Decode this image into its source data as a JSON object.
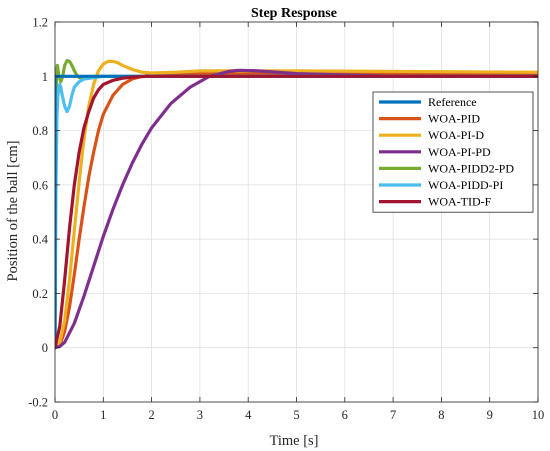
{
  "chart_data": {
    "type": "line",
    "title": "Step Response",
    "xlabel": "Time [s]",
    "ylabel": "Position of the ball [cm]",
    "xlim": [
      0,
      10
    ],
    "ylim": [
      -0.2,
      1.2
    ],
    "xticks": [
      0,
      1,
      2,
      3,
      4,
      5,
      6,
      7,
      8,
      9,
      10
    ],
    "yticks": [
      -0.2,
      0,
      0.2,
      0.4,
      0.6,
      0.8,
      1,
      1.2
    ],
    "xtick_labels": [
      "0",
      "1",
      "2",
      "3",
      "4",
      "5",
      "6",
      "7",
      "8",
      "9",
      "10"
    ],
    "ytick_labels": [
      "-0.2",
      "0",
      "0.2",
      "0.4",
      "0.6",
      "0.8",
      "1",
      "1.2"
    ],
    "grid": true,
    "legend_position": "top-right",
    "series": [
      {
        "name": "Reference",
        "color": "#0072BD",
        "x": [
          0,
          0.001,
          10
        ],
        "y": [
          0,
          1,
          1
        ]
      },
      {
        "name": "WOA-PID",
        "color": "#D95319",
        "x": [
          0,
          0.1,
          0.2,
          0.3,
          0.4,
          0.5,
          0.6,
          0.7,
          0.8,
          0.9,
          1.0,
          1.2,
          1.4,
          1.6,
          1.8,
          2.0,
          2.5,
          3.0,
          4.0,
          6.0,
          10.0
        ],
        "y": [
          0,
          0.01,
          0.06,
          0.15,
          0.27,
          0.4,
          0.52,
          0.63,
          0.72,
          0.8,
          0.86,
          0.93,
          0.97,
          0.99,
          1.0,
          1.005,
          1.01,
          1.012,
          1.012,
          1.01,
          1.01
        ]
      },
      {
        "name": "WOA-PI-D",
        "color": "#EDB120",
        "x": [
          0,
          0.1,
          0.2,
          0.3,
          0.4,
          0.5,
          0.6,
          0.7,
          0.8,
          0.9,
          1.0,
          1.1,
          1.2,
          1.3,
          1.4,
          1.6,
          1.8,
          2.0,
          2.5,
          3.0,
          5.0,
          10.0
        ],
        "y": [
          0,
          0.02,
          0.1,
          0.25,
          0.43,
          0.61,
          0.77,
          0.89,
          0.97,
          1.02,
          1.045,
          1.055,
          1.055,
          1.05,
          1.04,
          1.025,
          1.015,
          1.012,
          1.015,
          1.02,
          1.02,
          1.015
        ]
      },
      {
        "name": "WOA-PI-PD",
        "color": "#7E2F8E",
        "x": [
          0,
          0.1,
          0.2,
          0.4,
          0.6,
          0.8,
          1.0,
          1.2,
          1.4,
          1.6,
          1.8,
          2.0,
          2.4,
          2.8,
          3.2,
          3.6,
          3.8,
          4.2,
          4.6,
          5.0,
          6.0,
          7.0,
          8.0,
          10.0
        ],
        "y": [
          0,
          0.005,
          0.02,
          0.09,
          0.19,
          0.3,
          0.41,
          0.51,
          0.6,
          0.68,
          0.75,
          0.81,
          0.9,
          0.96,
          1.0,
          1.018,
          1.022,
          1.02,
          1.015,
          1.01,
          1.005,
          1.0,
          1.0,
          1.0
        ]
      },
      {
        "name": "WOA-PIDD2-PD",
        "color": "#77AC30",
        "x": [
          0,
          0.01,
          0.02,
          0.03,
          0.05,
          0.08,
          0.12,
          0.16,
          0.2,
          0.25,
          0.3,
          0.35,
          0.4,
          0.45,
          0.5,
          0.6,
          0.8,
          1.0,
          10.0
        ],
        "y": [
          0,
          0.5,
          0.85,
          1.01,
          1.04,
          1.0,
          0.98,
          1.0,
          1.04,
          1.058,
          1.055,
          1.04,
          1.02,
          1.005,
          0.995,
          0.99,
          1.0,
          1.0,
          1.0
        ]
      },
      {
        "name": "WOA-PIDD-PI",
        "color": "#4DBEEE",
        "x": [
          0,
          0.01,
          0.02,
          0.04,
          0.06,
          0.08,
          0.1,
          0.12,
          0.15,
          0.2,
          0.25,
          0.3,
          0.35,
          0.4,
          0.5,
          0.6,
          0.8,
          1.0,
          1.5,
          10.0
        ],
        "y": [
          0,
          0.3,
          0.6,
          0.85,
          0.93,
          0.96,
          0.97,
          0.96,
          0.93,
          0.89,
          0.87,
          0.89,
          0.93,
          0.96,
          0.98,
          0.99,
          0.995,
          1.0,
          1.0,
          1.0
        ]
      },
      {
        "name": "WOA-TID-F",
        "color": "#A2142F",
        "x": [
          0,
          0.1,
          0.2,
          0.3,
          0.4,
          0.5,
          0.6,
          0.7,
          0.8,
          0.9,
          1.0,
          1.2,
          1.4,
          1.6,
          1.8,
          2.0,
          2.5,
          3.0,
          10.0
        ],
        "y": [
          0,
          0.08,
          0.25,
          0.44,
          0.6,
          0.72,
          0.81,
          0.87,
          0.92,
          0.95,
          0.97,
          0.985,
          0.993,
          0.997,
          0.999,
          1.0,
          1.0,
          1.0,
          1.0
        ]
      }
    ]
  }
}
